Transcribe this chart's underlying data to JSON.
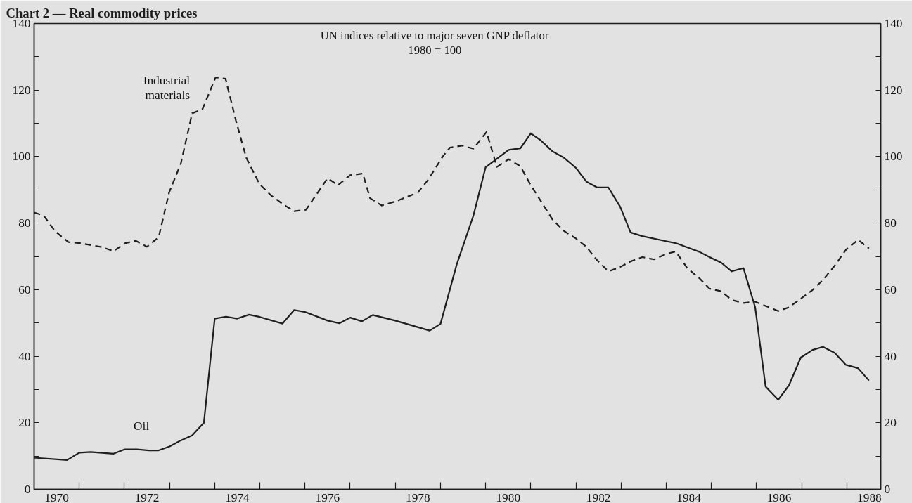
{
  "chart_data": {
    "type": "line",
    "title": "Chart 2 — Real commodity prices",
    "subtitle": "UN indices relative to major seven GNP deflator\n1980 = 100",
    "xlim": [
      1970,
      1988.75
    ],
    "ylim": [
      0,
      140
    ],
    "y2lim": [
      0,
      140
    ],
    "xticks": [
      {
        "value": 1970.5,
        "label": "1970"
      },
      {
        "value": 1972.5,
        "label": "1972"
      },
      {
        "value": 1974.5,
        "label": "1974"
      },
      {
        "value": 1976.5,
        "label": "1976"
      },
      {
        "value": 1978.5,
        "label": "1978"
      },
      {
        "value": 1980.5,
        "label": "1980"
      },
      {
        "value": 1982.5,
        "label": "1982"
      },
      {
        "value": 1984.5,
        "label": "1984"
      },
      {
        "value": 1986.5,
        "label": "1986"
      },
      {
        "value": 1988.5,
        "label": "1988"
      },
      {
        "value": 1971,
        "label": null
      },
      {
        "value": 1972,
        "label": null
      },
      {
        "value": 1973,
        "label": null
      },
      {
        "value": 1974,
        "label": null
      },
      {
        "value": 1975,
        "label": null
      },
      {
        "value": 1976,
        "label": null
      },
      {
        "value": 1977,
        "label": null
      },
      {
        "value": 1978,
        "label": null
      },
      {
        "value": 1979,
        "label": null
      },
      {
        "value": 1980,
        "label": null
      },
      {
        "value": 1981,
        "label": null
      },
      {
        "value": 1982,
        "label": null
      },
      {
        "value": 1983,
        "label": null
      },
      {
        "value": 1984,
        "label": null
      },
      {
        "value": 1985,
        "label": null
      },
      {
        "value": 1986,
        "label": null
      },
      {
        "value": 1987,
        "label": null
      },
      {
        "value": 1988,
        "label": null
      }
    ],
    "yticks": [
      0,
      {
        "value": 10,
        "label": null
      },
      20,
      {
        "value": 30,
        "label": null
      },
      40,
      {
        "value": 50,
        "label": null
      },
      60,
      {
        "value": 70,
        "label": null
      },
      80,
      {
        "value": 90,
        "label": null
      },
      100,
      {
        "value": 110,
        "label": null
      },
      120,
      {
        "value": 130,
        "label": null
      },
      140
    ],
    "y2ticks": [
      0,
      {
        "value": 10,
        "label": null
      },
      20,
      {
        "value": 30,
        "label": null
      },
      40,
      {
        "value": 50,
        "label": null
      },
      60,
      {
        "value": 70,
        "label": null
      },
      80,
      {
        "value": 90,
        "label": null
      },
      100,
      {
        "value": 110,
        "label": null
      },
      120,
      {
        "value": 130,
        "label": null
      },
      140
    ],
    "grid": false,
    "marker": "none",
    "series": [
      {
        "name": "Industrial materials",
        "color": "#1e1e1e",
        "line_style": "dashed",
        "x": [
          1970.0,
          1970.21,
          1970.47,
          1970.76,
          1971.02,
          1971.5,
          1971.76,
          1972.02,
          1972.25,
          1972.5,
          1972.76,
          1972.99,
          1973.25,
          1973.5,
          1973.73,
          1974.02,
          1974.24,
          1974.47,
          1974.7,
          1974.99,
          1975.25,
          1975.5,
          1975.76,
          1976.02,
          1976.5,
          1976.73,
          1977.0,
          1977.28,
          1977.44,
          1977.7,
          1978.02,
          1978.5,
          1978.73,
          1979.05,
          1979.21,
          1979.47,
          1979.73,
          1980.02,
          1980.25,
          1980.51,
          1980.77,
          1981.0,
          1981.22,
          1981.48,
          1981.74,
          1982.0,
          1982.23,
          1982.46,
          1982.72,
          1982.98,
          1983.21,
          1983.47,
          1983.73,
          1983.99,
          1984.21,
          1984.47,
          1984.73,
          1984.96,
          1985.22,
          1985.45,
          1985.71,
          1985.97,
          1986.2,
          1986.48,
          1986.72,
          1986.98,
          1987.24,
          1987.47,
          1987.73,
          1987.98,
          1988.25,
          1988.49
        ],
        "values": [
          83.2,
          82.3,
          77.5,
          74.3,
          74,
          72.8,
          71.6,
          74,
          74.7,
          72.9,
          75.8,
          89.2,
          97.9,
          113,
          114.3,
          123.8,
          123.4,
          110.8,
          99.6,
          91.8,
          88.3,
          85.8,
          83.6,
          84,
          93.5,
          91.4,
          94.4,
          94.9,
          87.5,
          85.3,
          86.6,
          89.2,
          93.1,
          100,
          102.7,
          103.3,
          102.4,
          107.4,
          96.9,
          99.2,
          97.1,
          91.4,
          86.7,
          81.1,
          77.6,
          75.4,
          72.9,
          69,
          65.5,
          66.8,
          68.5,
          69.8,
          69.1,
          70.7,
          71.5,
          66.4,
          63.5,
          60.3,
          59.5,
          56.9,
          56,
          56.4,
          55.1,
          53.6,
          54.7,
          57.3,
          59.9,
          62.9,
          67.2,
          72,
          75,
          72.4
        ]
      },
      {
        "name": "Oil",
        "color": "#1e1e1e",
        "line_style": "solid",
        "x": [
          1970.0,
          1970.73,
          1971.0,
          1971.25,
          1971.76,
          1972.0,
          1972.28,
          1972.54,
          1972.76,
          1973.0,
          1973.25,
          1973.5,
          1973.76,
          1974.0,
          1974.25,
          1974.5,
          1974.76,
          1975.0,
          1975.5,
          1975.76,
          1976.0,
          1976.5,
          1976.76,
          1977.0,
          1977.26,
          1977.5,
          1978.0,
          1978.76,
          1979.0,
          1979.36,
          1979.73,
          1980.0,
          1980.51,
          1980.77,
          1981.0,
          1981.22,
          1981.48,
          1981.74,
          1982.0,
          1982.23,
          1982.46,
          1982.72,
          1982.98,
          1983.21,
          1983.47,
          1983.99,
          1984.21,
          1984.47,
          1984.73,
          1984.96,
          1985.22,
          1985.45,
          1985.71,
          1985.97,
          1986.2,
          1986.48,
          1986.72,
          1986.98,
          1987.24,
          1987.47,
          1987.73,
          1987.98,
          1988.25,
          1988.49
        ],
        "values": [
          9.5,
          8.8,
          11,
          11.2,
          10.7,
          12,
          12,
          11.7,
          11.7,
          12.9,
          14.7,
          16.2,
          20,
          51.3,
          51.9,
          51.3,
          52.5,
          51.8,
          49.8,
          53.9,
          53.3,
          50.7,
          49.9,
          51.6,
          50.5,
          52.4,
          50.7,
          47.7,
          49.7,
          67.6,
          82.3,
          96.8,
          102,
          102.5,
          107,
          104.9,
          101.6,
          99.6,
          96.6,
          92.5,
          90.8,
          90.7,
          84.9,
          77.2,
          76.1,
          74.6,
          74,
          72.7,
          71.4,
          69.8,
          68.1,
          65.5,
          66.5,
          54.7,
          30.9,
          26.9,
          31.3,
          39.6,
          41.9,
          42.8,
          41,
          37.4,
          36.4,
          32.7
        ]
      }
    ]
  }
}
